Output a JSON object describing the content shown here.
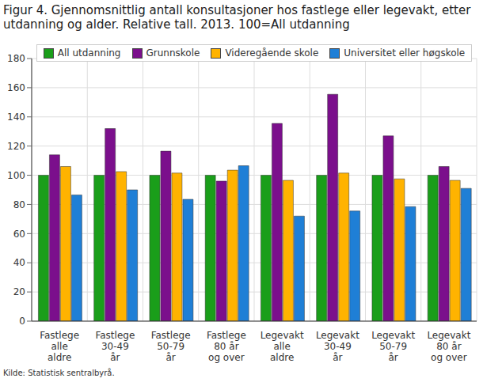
{
  "chart_data": {
    "type": "bar",
    "title": "Figur 4. Gjennomsnittlig antall konsultasjoner hos fastlege eller legevakt, etter utdanning og alder. Relative tall. 2013. 100=All utdanning",
    "source": "Kilde: Statistisk sentralbyrå.",
    "categories": [
      "Fastlege\nalle\naldre",
      "Fastlege\n30-49\når",
      "Fastlege\n50-79\når",
      "Fastlege\n80 år\nog over",
      "Legevakt\nalle\naldre",
      "Legevakt\n30-49\når",
      "Legevakt\n50-79\når",
      "Legevakt\n80 år\nog over"
    ],
    "series": [
      {
        "name": "All utdanning",
        "color": "#1a9e1a",
        "values": [
          100,
          100,
          100,
          100,
          100,
          100,
          100,
          100
        ]
      },
      {
        "name": "Grunnskole",
        "color": "#7b0f8c",
        "values": [
          114,
          132,
          116.5,
          96,
          135.5,
          155.5,
          127,
          106
        ]
      },
      {
        "name": "Videregående skole",
        "color": "#ffb300",
        "values": [
          106,
          102.5,
          101.5,
          103.5,
          96.5,
          101.5,
          97.5,
          96.5
        ]
      },
      {
        "name": "Universitet eller høgskole",
        "color": "#1f7fd6",
        "values": [
          86.5,
          90,
          83.5,
          106.5,
          72,
          75.5,
          78.5,
          91
        ]
      }
    ],
    "ylim": [
      0,
      180
    ],
    "yticks": [
      0,
      20,
      40,
      60,
      80,
      100,
      120,
      140,
      160,
      180
    ],
    "grid": true,
    "legend": "top"
  }
}
